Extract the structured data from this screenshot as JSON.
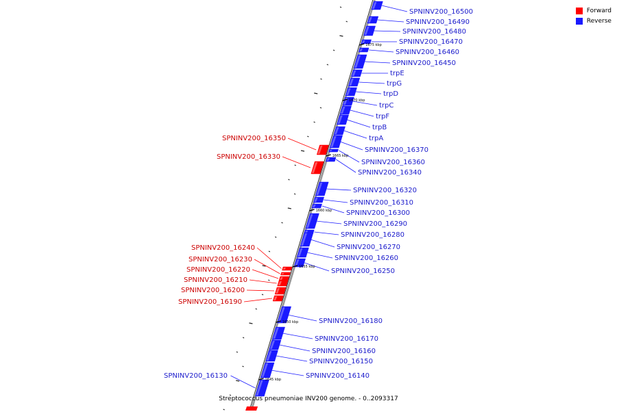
{
  "legend": {
    "forward_label": "Forward",
    "reverse_label": "Reverse",
    "forward_color": "#ff0000",
    "reverse_color": "#1a1aff"
  },
  "caption": "Streptococcus pneumoniae INV200 genome. - 0..2093317",
  "axis": {
    "ticks": [
      "1645 kbp",
      "1650 kbp",
      "1655 kbp",
      "1660 kbp",
      "1665 kbp",
      "1670 kbp",
      "1675 kbp"
    ]
  },
  "genes": [
    {
      "name": "SPNINV200_16500",
      "strand": "reverse"
    },
    {
      "name": "SPNINV200_16490",
      "strand": "reverse"
    },
    {
      "name": "SPNINV200_16480",
      "strand": "reverse"
    },
    {
      "name": "SPNINV200_16470",
      "strand": "reverse"
    },
    {
      "name": "SPNINV200_16460",
      "strand": "reverse"
    },
    {
      "name": "SPNINV200_16450",
      "strand": "reverse"
    },
    {
      "name": "trpE",
      "strand": "reverse"
    },
    {
      "name": "trpG",
      "strand": "reverse"
    },
    {
      "name": "trpD",
      "strand": "reverse"
    },
    {
      "name": "trpC",
      "strand": "reverse"
    },
    {
      "name": "trpF",
      "strand": "reverse"
    },
    {
      "name": "trpB",
      "strand": "reverse"
    },
    {
      "name": "trpA",
      "strand": "reverse"
    },
    {
      "name": "SPNINV200_16370",
      "strand": "reverse"
    },
    {
      "name": "SPNINV200_16360",
      "strand": "reverse"
    },
    {
      "name": "SPNINV200_16340",
      "strand": "reverse"
    },
    {
      "name": "SPNINV200_16320",
      "strand": "reverse"
    },
    {
      "name": "SPNINV200_16310",
      "strand": "reverse"
    },
    {
      "name": "SPNINV200_16300",
      "strand": "reverse"
    },
    {
      "name": "SPNINV200_16290",
      "strand": "reverse"
    },
    {
      "name": "SPNINV200_16280",
      "strand": "reverse"
    },
    {
      "name": "SPNINV200_16270",
      "strand": "reverse"
    },
    {
      "name": "SPNINV200_16260",
      "strand": "reverse"
    },
    {
      "name": "SPNINV200_16250",
      "strand": "reverse"
    },
    {
      "name": "SPNINV200_16180",
      "strand": "reverse"
    },
    {
      "name": "SPNINV200_16170",
      "strand": "reverse"
    },
    {
      "name": "SPNINV200_16160",
      "strand": "reverse"
    },
    {
      "name": "SPNINV200_16150",
      "strand": "reverse"
    },
    {
      "name": "SPNINV200_16140",
      "strand": "reverse"
    },
    {
      "name": "SPNINV200_16130",
      "strand": "reverse"
    },
    {
      "name": "SPNINV200_16350",
      "strand": "forward"
    },
    {
      "name": "SPNINV200_16330",
      "strand": "forward"
    },
    {
      "name": "SPNINV200_16240",
      "strand": "forward"
    },
    {
      "name": "SPNINV200_16230",
      "strand": "forward"
    },
    {
      "name": "SPNINV200_16220",
      "strand": "forward"
    },
    {
      "name": "SPNINV200_16210",
      "strand": "forward"
    },
    {
      "name": "SPNINV200_16200",
      "strand": "forward"
    },
    {
      "name": "SPNINV200_16190",
      "strand": "forward"
    }
  ]
}
